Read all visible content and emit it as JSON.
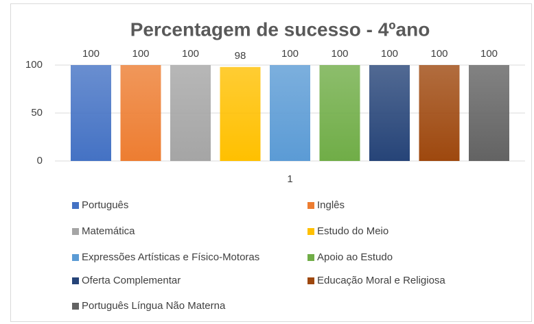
{
  "chart_data": {
    "type": "bar",
    "title": "Percentagem de sucesso - 4ºano",
    "categories": [
      "1"
    ],
    "series": [
      {
        "name": "Português",
        "color": "#4472c4",
        "values": [
          100
        ]
      },
      {
        "name": "Inglês",
        "color": "#ed7d31",
        "values": [
          100
        ]
      },
      {
        "name": "Matemática",
        "color": "#a5a5a5",
        "values": [
          100
        ]
      },
      {
        "name": "Estudo do Meio",
        "color": "#ffc000",
        "values": [
          98
        ]
      },
      {
        "name": "Expressões Artísticas e Físico-Motoras",
        "color": "#5b9bd5",
        "values": [
          100
        ]
      },
      {
        "name": "Apoio ao Estudo",
        "color": "#70ad47",
        "values": [
          100
        ]
      },
      {
        "name": "Oferta Complementar",
        "color": "#264478",
        "values": [
          100
        ]
      },
      {
        "name": "Educação Moral e Religiosa",
        "color": "#9e480e",
        "values": [
          100
        ]
      },
      {
        "name": "Português Língua Não Materna",
        "color": "#636363",
        "values": [
          100
        ]
      }
    ],
    "ylim": [
      0,
      100
    ],
    "yticks": [
      0,
      50,
      100
    ],
    "grid": true,
    "legend": "bottom"
  }
}
